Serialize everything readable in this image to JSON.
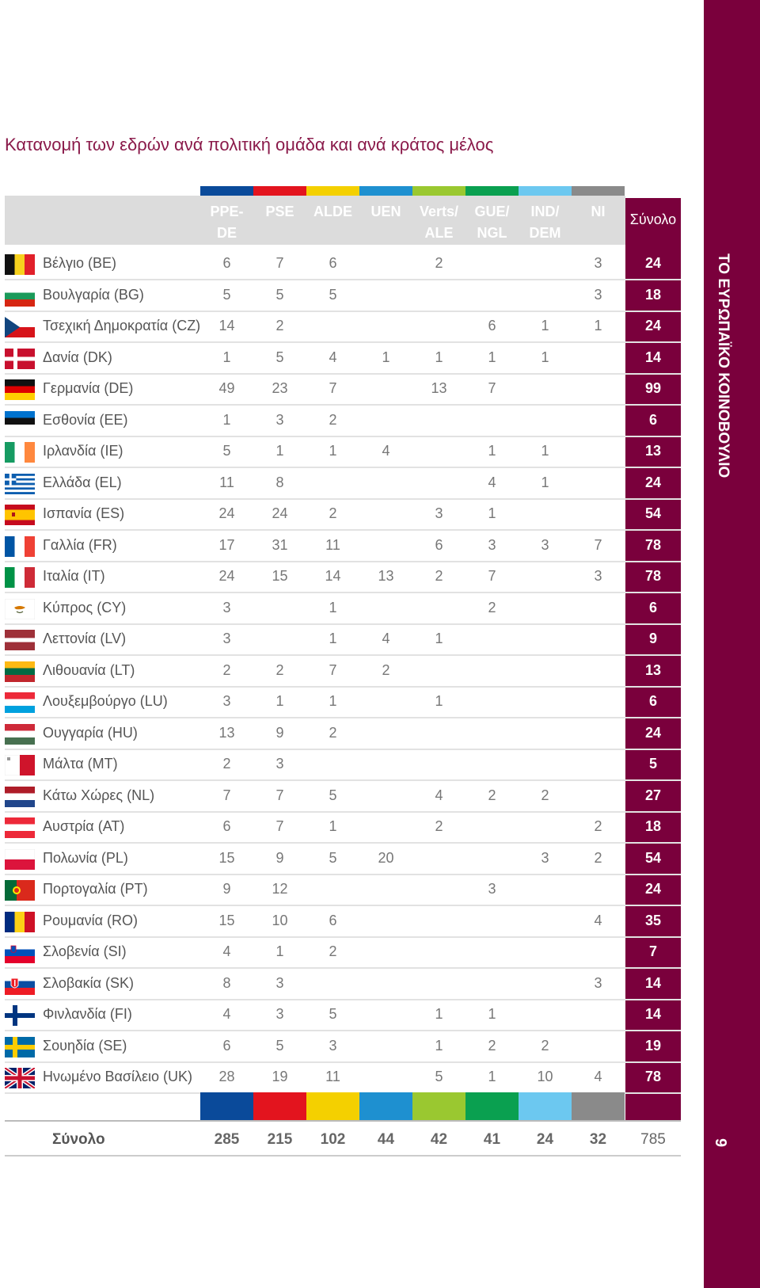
{
  "title": "Κατανομή των εδρών ανά πολιτική ομάδα και ανά κράτος μέλος",
  "side_text": "ΤΟ ΕΥΡΩΠΑΪΚΟ ΚΟΙΝΟΒΟΥΛΙΟ",
  "page_number": "9",
  "groups": [
    {
      "label": "PPE-\nDE",
      "color": "#0a4a9a"
    },
    {
      "label": "PSE",
      "color": "#e3141e"
    },
    {
      "label": "ALDE",
      "color": "#f4d000"
    },
    {
      "label": "UEN",
      "color": "#1e90d0"
    },
    {
      "label": "Verts/\nALE",
      "color": "#9ac830"
    },
    {
      "label": "GUE/\nNGL",
      "color": "#0aa050"
    },
    {
      "label": "IND/\nDEM",
      "color": "#6cc8f0"
    },
    {
      "label": "NI",
      "color": "#8a8a8a"
    }
  ],
  "total_header": "Σύνολο",
  "rows": [
    {
      "country": "Βέλγιο (BE)",
      "flag": "be",
      "values": [
        "6",
        "7",
        "6",
        "",
        "2",
        "",
        "",
        "3"
      ],
      "total": "24"
    },
    {
      "country": "Βουλγαρία (BG)",
      "flag": "bg",
      "values": [
        "5",
        "5",
        "5",
        "",
        "",
        "",
        "",
        "3"
      ],
      "total": "18"
    },
    {
      "country": "Τσεχική Δημοκρατία (CZ)",
      "flag": "cz",
      "values": [
        "14",
        "2",
        "",
        "",
        "",
        "6",
        "1",
        "1"
      ],
      "total": "24"
    },
    {
      "country": "Δανία (DK)",
      "flag": "dk",
      "values": [
        "1",
        "5",
        "4",
        "1",
        "1",
        "1",
        "1",
        ""
      ],
      "total": "14"
    },
    {
      "country": "Γερμανία (DE)",
      "flag": "de",
      "values": [
        "49",
        "23",
        "7",
        "",
        "13",
        "7",
        "",
        ""
      ],
      "total": "99"
    },
    {
      "country": "Εσθονία (EE)",
      "flag": "ee",
      "values": [
        "1",
        "3",
        "2",
        "",
        "",
        "",
        "",
        ""
      ],
      "total": "6"
    },
    {
      "country": "Ιρλανδία (IE)",
      "flag": "ie",
      "values": [
        "5",
        "1",
        "1",
        "4",
        "",
        "1",
        "1",
        ""
      ],
      "total": "13"
    },
    {
      "country": "Ελλάδα (EL)",
      "flag": "el",
      "values": [
        "11",
        "8",
        "",
        "",
        "",
        "4",
        "1",
        ""
      ],
      "total": "24"
    },
    {
      "country": "Ισπανία (ES)",
      "flag": "es",
      "values": [
        "24",
        "24",
        "2",
        "",
        "3",
        "1",
        "",
        ""
      ],
      "total": "54"
    },
    {
      "country": "Γαλλία (FR)",
      "flag": "fr",
      "values": [
        "17",
        "31",
        "11",
        "",
        "6",
        "3",
        "3",
        "7"
      ],
      "total": "78"
    },
    {
      "country": "Ιταλία (IT)",
      "flag": "it",
      "values": [
        "24",
        "15",
        "14",
        "13",
        "2",
        "7",
        "",
        "3"
      ],
      "total": "78"
    },
    {
      "country": "Κύπρος (CY)",
      "flag": "cy",
      "values": [
        "3",
        "",
        "1",
        "",
        "",
        "2",
        "",
        ""
      ],
      "total": "6"
    },
    {
      "country": "Λεττονία (LV)",
      "flag": "lv",
      "values": [
        "3",
        "",
        "1",
        "4",
        "1",
        "",
        "",
        ""
      ],
      "total": "9"
    },
    {
      "country": "Λιθουανία (LT)",
      "flag": "lt",
      "values": [
        "2",
        "2",
        "7",
        "2",
        "",
        "",
        "",
        ""
      ],
      "total": "13"
    },
    {
      "country": "Λουξεμβούργο (LU)",
      "flag": "lu",
      "values": [
        "3",
        "1",
        "1",
        "",
        "1",
        "",
        "",
        ""
      ],
      "total": "6"
    },
    {
      "country": "Ουγγαρία (HU)",
      "flag": "hu",
      "values": [
        "13",
        "9",
        "2",
        "",
        "",
        "",
        "",
        ""
      ],
      "total": "24"
    },
    {
      "country": "Μάλτα (MT)",
      "flag": "mt",
      "values": [
        "2",
        "3",
        "",
        "",
        "",
        "",
        "",
        ""
      ],
      "total": "5"
    },
    {
      "country": "Κάτω Χώρες (NL)",
      "flag": "nl",
      "values": [
        "7",
        "7",
        "5",
        "",
        "4",
        "2",
        "2",
        ""
      ],
      "total": "27"
    },
    {
      "country": "Αυστρία (AT)",
      "flag": "at",
      "values": [
        "6",
        "7",
        "1",
        "",
        "2",
        "",
        "",
        "2"
      ],
      "total": "18"
    },
    {
      "country": "Πολωνία (PL)",
      "flag": "pl",
      "values": [
        "15",
        "9",
        "5",
        "20",
        "",
        "",
        "3",
        "2"
      ],
      "total": "54"
    },
    {
      "country": "Πορτογαλία (PT)",
      "flag": "pt",
      "values": [
        "9",
        "12",
        "",
        "",
        "",
        "3",
        "",
        ""
      ],
      "total": "24"
    },
    {
      "country": "Ρουμανία (RO)",
      "flag": "ro",
      "values": [
        "15",
        "10",
        "6",
        "",
        "",
        "",
        "",
        "4"
      ],
      "total": "35"
    },
    {
      "country": "Σλοβενία (SI)",
      "flag": "si",
      "values": [
        "4",
        "1",
        "2",
        "",
        "",
        "",
        "",
        ""
      ],
      "total": "7"
    },
    {
      "country": "Σλοβακία (SK)",
      "flag": "sk",
      "values": [
        "8",
        "3",
        "",
        "",
        "",
        "",
        "",
        "3"
      ],
      "total": "14"
    },
    {
      "country": "Φινλανδία (FI)",
      "flag": "fi",
      "values": [
        "4",
        "3",
        "5",
        "",
        "1",
        "1",
        "",
        ""
      ],
      "total": "14"
    },
    {
      "country": "Σουηδία (SE)",
      "flag": "se",
      "values": [
        "6",
        "5",
        "3",
        "",
        "1",
        "2",
        "2",
        ""
      ],
      "total": "19"
    },
    {
      "country": "Ηνωμένο Βασίλειο (UK)",
      "flag": "uk",
      "values": [
        "28",
        "19",
        "11",
        "",
        "5",
        "1",
        "10",
        "4"
      ],
      "total": "78"
    }
  ],
  "summary": {
    "label": "Σύνολο",
    "values": [
      "285",
      "215",
      "102",
      "44",
      "42",
      "41",
      "24",
      "32"
    ],
    "total": "785"
  }
}
